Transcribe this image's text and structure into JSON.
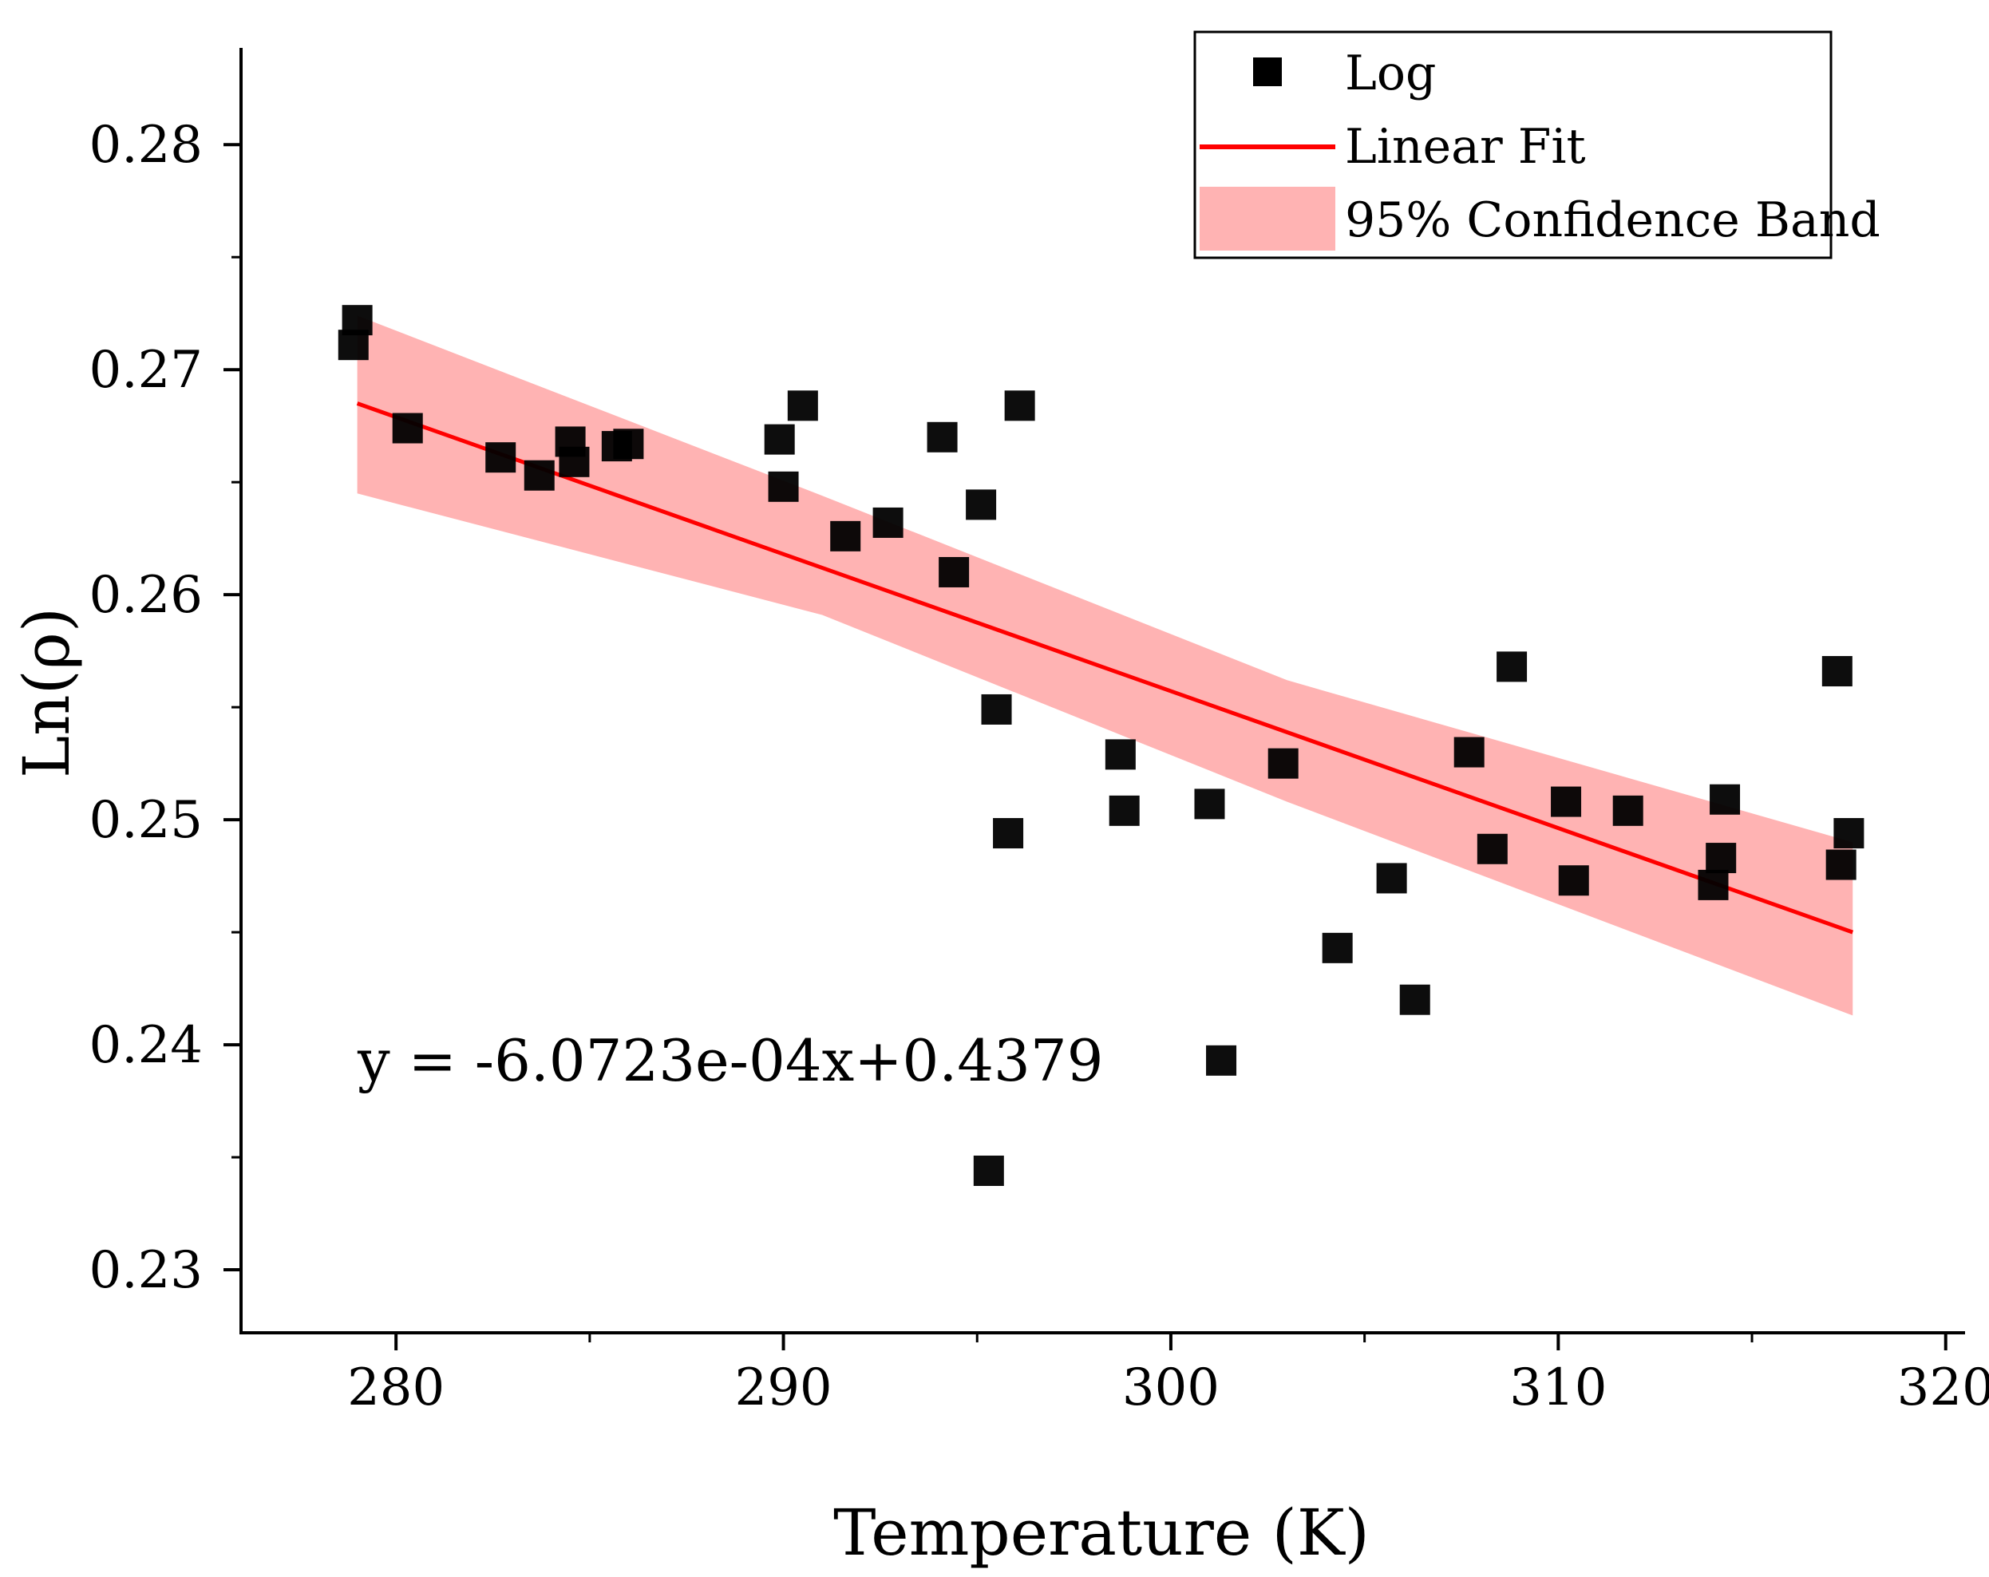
{
  "chart_data": {
    "type": "scatter",
    "title": "",
    "xlabel": "Temperature (K)",
    "ylabel": "Ln(ρ)",
    "xlim": [
      276,
      320.5
    ],
    "ylim": [
      0.2272,
      0.2843
    ],
    "xticks": [
      280,
      290,
      300,
      310,
      320
    ],
    "xtick_labels": [
      "280",
      "290",
      "300",
      "310",
      "320"
    ],
    "yticks": [
      0.23,
      0.24,
      0.25,
      0.26,
      0.27,
      0.28
    ],
    "ytick_labels": [
      "0.23",
      "0.24",
      "0.25",
      "0.26",
      "0.27",
      "0.28"
    ],
    "grid": false,
    "legend_position": "top-right",
    "legend": {
      "log": "Log",
      "fit": "Linear Fit",
      "band": "95% Confidence Band"
    },
    "colors": {
      "points": "#000000",
      "fit_line": "#ff0000",
      "band": "#ffb3b3"
    },
    "series": [
      {
        "name": "Log",
        "kind": "scatter",
        "x": [
          279.0,
          278.9,
          280.3,
          282.7,
          283.7,
          284.5,
          284.6,
          285.7,
          286.0,
          289.9,
          290.0,
          290.5,
          291.6,
          292.7,
          294.1,
          294.4,
          295.1,
          295.5,
          295.3,
          295.8,
          296.1,
          298.7,
          298.8,
          301.0,
          301.3,
          302.9,
          304.3,
          305.7,
          306.3,
          307.7,
          308.3,
          308.8,
          310.2,
          310.4,
          311.8,
          314.0,
          314.2,
          314.3,
          317.2,
          317.3,
          317.5
        ],
        "y": [
          0.2722,
          0.2711,
          0.2674,
          0.2661,
          0.2653,
          0.2668,
          0.2659,
          0.2666,
          0.2667,
          0.2669,
          0.2648,
          0.2684,
          0.2626,
          0.2632,
          0.267,
          0.261,
          0.264,
          0.2549,
          0.2344,
          0.2494,
          0.2684,
          0.2529,
          0.2504,
          0.2507,
          0.2393,
          0.2525,
          0.2443,
          0.2474,
          0.242,
          0.253,
          0.2487,
          0.2568,
          0.2508,
          0.2473,
          0.2504,
          0.2471,
          0.2483,
          0.2509,
          0.2566,
          0.248,
          0.2494
        ]
      },
      {
        "name": "Linear Fit",
        "kind": "line",
        "x": [
          279.0,
          317.6
        ],
        "y": [
          0.2685,
          0.245
        ]
      },
      {
        "name": "95% Confidence Band",
        "kind": "band",
        "x": [
          279.0,
          291.0,
          303.0,
          317.6
        ],
        "upper": [
          0.2724,
          0.2644,
          0.2562,
          0.249
        ],
        "lower": [
          0.2645,
          0.2591,
          0.2508,
          0.2413
        ]
      }
    ],
    "annotations": [
      {
        "text": "y = -6.0723e-04x+0.4379"
      }
    ]
  }
}
